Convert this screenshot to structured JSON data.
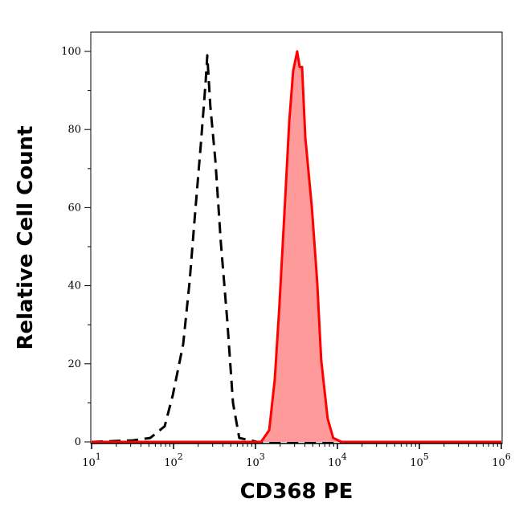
{
  "chart_data": {
    "type": "area",
    "title": "",
    "xlabel": "CD368 PE",
    "ylabel": "Relative Cell Count",
    "xscale": "log",
    "xlim": [
      10,
      1000000
    ],
    "ylim": [
      0,
      105
    ],
    "x_ticks": [
      {
        "value": 10,
        "base": "10",
        "exp": "1"
      },
      {
        "value": 100,
        "base": "10",
        "exp": "2"
      },
      {
        "value": 1000,
        "base": "10",
        "exp": "3"
      },
      {
        "value": 10000,
        "base": "10",
        "exp": "4"
      },
      {
        "value": 100000,
        "base": "10",
        "exp": "5"
      },
      {
        "value": 1000000,
        "base": "10",
        "exp": "6"
      }
    ],
    "y_ticks": [
      0,
      20,
      40,
      60,
      80,
      100
    ],
    "grid": false,
    "legend": "none",
    "series": [
      {
        "style": "dashed",
        "color": "#000000",
        "fill": "none",
        "x": [
          10,
          32,
          52,
          78,
          98,
          131,
          157,
          184,
          215,
          246,
          258,
          281,
          324,
          378,
          453,
          532,
          634,
          1050,
          1000000
        ],
        "y": [
          0,
          0.4,
          1,
          4,
          12,
          25,
          41,
          59,
          76,
          92,
          99,
          86,
          72,
          51,
          31,
          10,
          1,
          0,
          0
        ]
      },
      {
        "style": "solid",
        "color": "#ff0000",
        "fill": "#ff9a9a",
        "x": [
          10,
          1170,
          1470,
          1720,
          1960,
          2300,
          2580,
          2880,
          3230,
          3460,
          3700,
          4050,
          4880,
          5660,
          6340,
          7600,
          8880,
          11200,
          1000000
        ],
        "y": [
          0,
          0,
          3,
          16,
          35,
          62,
          82,
          95,
          100,
          96,
          96,
          78,
          60,
          41,
          21,
          6,
          1,
          0,
          0
        ]
      }
    ]
  }
}
